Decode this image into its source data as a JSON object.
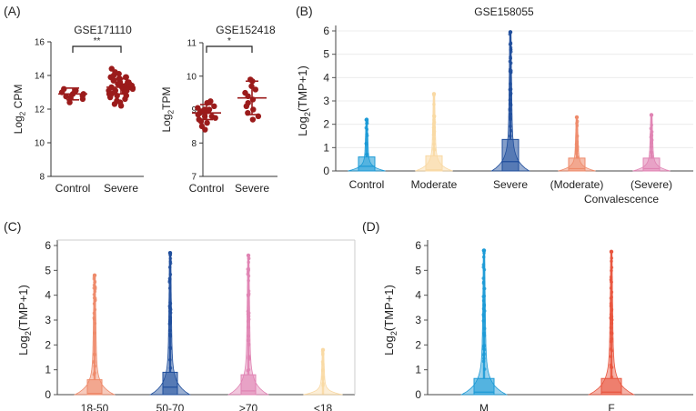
{
  "colors": {
    "dark_red": "#9b1b1b",
    "ctrl_blue": "#1c9ad6",
    "moderate": "#f9d9a4",
    "severe_blue": "#1f4e9c",
    "conv_moderate": "#ee8a6a",
    "conv_severe": "#e083b3",
    "age_1850": "#ee8a6a",
    "age_5070": "#1f4e9c",
    "age_70": "#e083b3",
    "age_18": "#f9d9a4",
    "sex_m": "#1c9ad6",
    "sex_f": "#e8553e"
  },
  "panels": {
    "A": "(A)",
    "B": "(B)",
    "C": "(C)",
    "D": "(D)"
  },
  "chart_data": [
    {
      "id": "A1",
      "type": "scatter",
      "title": "GSE171110",
      "ylabel_base": "Log",
      "ylabel_sub": "2",
      "ylabel_rest": " CPM",
      "ylim": [
        8,
        16
      ],
      "yticks": [
        "8",
        "10",
        "12",
        "14",
        "16"
      ],
      "categories": [
        "Control",
        "Severe"
      ],
      "significance": "**",
      "series": [
        {
          "name": "Control",
          "mean": 12.9,
          "err": [
            12.55,
            13.25
          ],
          "values": [
            12.8,
            12.9,
            13.0,
            12.7,
            12.6,
            13.2,
            12.4,
            12.9,
            13.1,
            12.75
          ]
        },
        {
          "name": "Severe",
          "mean": 13.3,
          "err": [
            12.9,
            13.8
          ],
          "values": [
            13.3,
            13.5,
            13.1,
            13.9,
            14.2,
            12.9,
            13.6,
            13.0,
            13.4,
            12.6,
            12.3,
            13.8,
            14.0,
            13.2,
            13.7,
            12.8,
            13.5,
            13.1,
            13.9,
            12.5,
            14.4,
            13.3,
            13.6,
            12.9,
            13.0,
            13.4,
            12.2,
            13.8,
            14.1,
            13.2,
            13.5,
            12.7,
            13.6,
            13.3,
            13.1,
            12.4,
            13.7,
            13.9,
            12.8,
            13.4
          ]
        }
      ]
    },
    {
      "id": "A2",
      "type": "scatter",
      "title": "GSE152418",
      "ylabel_base": "Log",
      "ylabel_sub": "2",
      "ylabel_rest": "TPM",
      "ylim": [
        7,
        11
      ],
      "yticks": [
        "7",
        "8",
        "9",
        "10",
        "11"
      ],
      "categories": [
        "Control",
        "Severe"
      ],
      "significance": "*",
      "series": [
        {
          "name": "Control",
          "mean": 8.9,
          "err": [
            8.7,
            9.15
          ],
          "values": [
            8.9,
            8.8,
            9.0,
            9.1,
            8.6,
            8.95,
            8.85,
            9.2,
            8.5,
            8.7,
            8.95,
            9.05,
            8.4,
            8.75,
            9.0,
            8.8,
            8.65,
            9.25
          ]
        },
        {
          "name": "Severe",
          "mean": 9.35,
          "err": [
            8.85,
            9.85
          ],
          "values": [
            9.9,
            9.6,
            9.4,
            9.0,
            8.8,
            9.3,
            9.7,
            8.9,
            9.5,
            8.7,
            9.2,
            9.85,
            9.1
          ]
        }
      ]
    },
    {
      "id": "B",
      "type": "violin",
      "title": "GSE158055",
      "ylabel_base": "Log",
      "ylabel_sub": "2",
      "ylabel_rest": "(TMP+1)",
      "ylim": [
        0,
        6
      ],
      "yticks": [
        "0",
        "1",
        "2",
        "3",
        "4",
        "5",
        "6"
      ],
      "categories": [
        "Control",
        "Moderate",
        "Severe",
        "(Moderate)",
        "(Severe)"
      ],
      "sublabel": "Convalescence",
      "series": [
        {
          "name": "Control",
          "max": 2.2,
          "q3": 0.6,
          "median": 0.2,
          "color_key": "ctrl_blue"
        },
        {
          "name": "Moderate",
          "max": 3.3,
          "q3": 0.65,
          "median": 0.05,
          "color_key": "moderate"
        },
        {
          "name": "Severe",
          "max": 5.95,
          "q3": 1.35,
          "median": 0.4,
          "color_key": "severe_blue"
        },
        {
          "name": "(Moderate)",
          "max": 2.3,
          "q3": 0.55,
          "median": 0.1,
          "color_key": "conv_moderate"
        },
        {
          "name": "(Severe)",
          "max": 2.4,
          "q3": 0.55,
          "median": 0.1,
          "color_key": "conv_severe"
        }
      ]
    },
    {
      "id": "C",
      "type": "violin",
      "title": "",
      "ylabel_base": "Log",
      "ylabel_sub": "2",
      "ylabel_rest": "(TMP+1)",
      "ylim": [
        0,
        6
      ],
      "yticks": [
        "0",
        "1",
        "2",
        "3",
        "4",
        "5",
        "6"
      ],
      "categories": [
        "18-50",
        "50-70",
        ">70",
        "<18"
      ],
      "series": [
        {
          "name": "18-50",
          "max": 4.8,
          "q3": 0.6,
          "median": 0.05,
          "color_key": "age_1850"
        },
        {
          "name": "50-70",
          "max": 5.7,
          "q3": 0.9,
          "median": 0.3,
          "color_key": "age_5070"
        },
        {
          "name": ">70",
          "max": 5.6,
          "q3": 0.8,
          "median": 0.15,
          "color_key": "age_70"
        },
        {
          "name": "<18",
          "max": 1.8,
          "q3": 0.02,
          "median": 0.0,
          "color_key": "age_18"
        }
      ]
    },
    {
      "id": "D",
      "type": "violin",
      "title": "",
      "ylabel_base": "Log",
      "ylabel_sub": "2",
      "ylabel_rest": "(TMP+1)",
      "ylim": [
        0,
        6
      ],
      "yticks": [
        "0",
        "1",
        "2",
        "3",
        "4",
        "5",
        "6"
      ],
      "categories": [
        "M",
        "F"
      ],
      "series": [
        {
          "name": "M",
          "max": 5.8,
          "q3": 0.65,
          "median": 0.1,
          "color_key": "sex_m"
        },
        {
          "name": "F",
          "max": 5.75,
          "q3": 0.65,
          "median": 0.1,
          "color_key": "sex_f"
        }
      ]
    }
  ]
}
